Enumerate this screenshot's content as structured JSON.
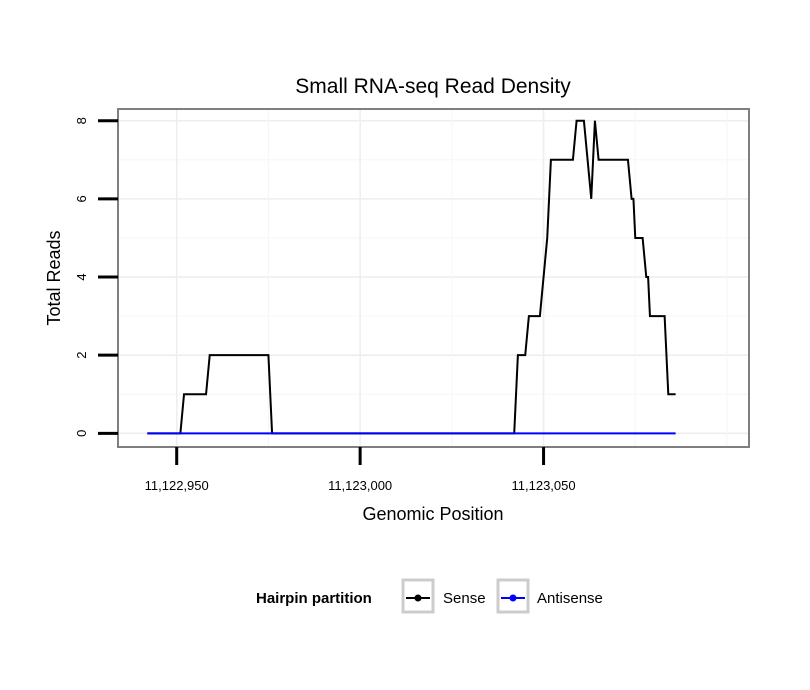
{
  "chart_data": {
    "type": "line",
    "title": "Small RNA-seq Read Density",
    "xlabel": "Genomic Position",
    "ylabel": "Total Reads",
    "xlim": [
      11122934,
      11123106
    ],
    "ylim": [
      -0.35,
      8.3
    ],
    "x_ticks": [
      11122950,
      11123000,
      11123050
    ],
    "x_tick_labels": [
      "11,122,950",
      "11,123,000",
      "11,123,050"
    ],
    "y_ticks": [
      0,
      2,
      4,
      6,
      8
    ],
    "y_tick_labels": [
      "0",
      "2",
      "4",
      "6",
      "8"
    ],
    "grid": true,
    "legend": {
      "title": "Hairpin partition",
      "position": "bottom",
      "entries": [
        {
          "name": "Sense",
          "color": "#000000"
        },
        {
          "name": "Antisense",
          "color": "#0000ff"
        }
      ]
    },
    "series": [
      {
        "name": "Sense",
        "color": "#000000",
        "points": [
          [
            11122942,
            0
          ],
          [
            11122951,
            0
          ],
          [
            11122952,
            1
          ],
          [
            11122958,
            1
          ],
          [
            11122959,
            2
          ],
          [
            11122975,
            2
          ],
          [
            11122976,
            0
          ],
          [
            11123042,
            0
          ],
          [
            11123043,
            2
          ],
          [
            11123045,
            2
          ],
          [
            11123046,
            3
          ],
          [
            11123049,
            3
          ],
          [
            11123051,
            5
          ],
          [
            11123052,
            7
          ],
          [
            11123058,
            7
          ],
          [
            11123059,
            8
          ],
          [
            11123061,
            8
          ],
          [
            11123063,
            6
          ],
          [
            11123064,
            8
          ],
          [
            11123065,
            7
          ],
          [
            11123073,
            7
          ],
          [
            11123074,
            6
          ],
          [
            11123074.5,
            6
          ],
          [
            11123075,
            5
          ],
          [
            11123077,
            5
          ],
          [
            11123078,
            4
          ],
          [
            11123078.5,
            4
          ],
          [
            11123079,
            3
          ],
          [
            11123083,
            3
          ],
          [
            11123084,
            1
          ],
          [
            11123086,
            1
          ]
        ]
      },
      {
        "name": "Antisense",
        "color": "#0000ff",
        "points": [
          [
            11122942,
            0
          ],
          [
            11123086,
            0
          ]
        ]
      }
    ]
  }
}
